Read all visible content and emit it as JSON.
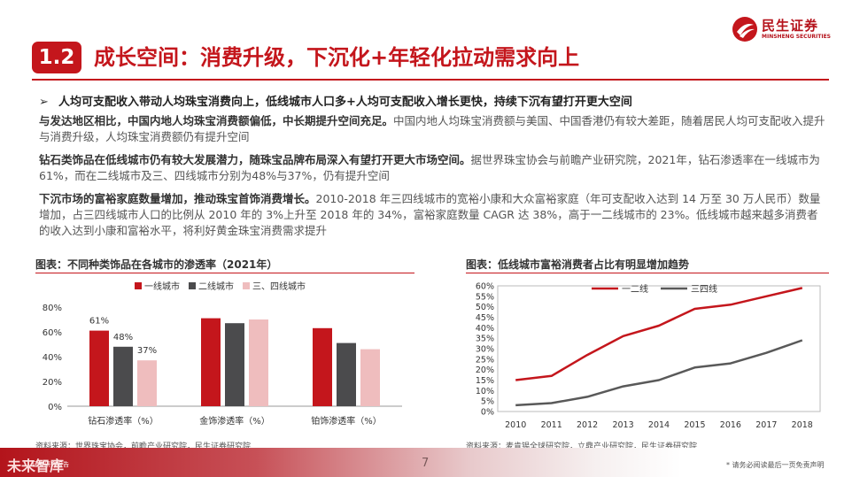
{
  "logo": {
    "cn": "民生证券",
    "en": "MINSHENG SECURITIES"
  },
  "section": {
    "number": "1.2",
    "title": "成长空间：消费升级，下沉化+年轻化拉动需求向上"
  },
  "bullet": "人均可支配收入带动人均珠宝消费向上，低线城市人口多+人均可支配收入增长更快，持续下沉有望打开更大空间",
  "paragraphs": [
    {
      "bold": "与发达地区相比，中国内地人均珠宝消费额偏低，中长期提升空间充足。",
      "text": "中国内地人均珠宝消费额与美国、中国香港仍有较大差距，随着居民人均可支配收入提升与消费升级，人均珠宝消费额仍有提升空间"
    },
    {
      "bold": "钻石类饰品在低线城市仍有较大发展潜力，随珠宝品牌布局深入有望打开更大市场空间。",
      "text": "据世界珠宝协会与前瞻产业研究院，2021年，钻石渗透率在一线城市为61%，而在二线城市及三、四线城市分别为48%与37%，仍有提升空间"
    },
    {
      "bold": "下沉市场的富裕家庭数量增加，推动珠宝首饰消费增长。",
      "text": "2010-2018 年三四线城市的宽裕小康和大众富裕家庭（年可支配收入达到 14 万至 30 万人民币）数量增加，占三四线城市人口的比例从 2010 年的 3%上升至 2018 年的 34%，富裕家庭数量 CAGR 达 38%，高于一二线城市的 23%。低线城市越来越多消费者的收入达到小康和富裕水平，将利好黄金珠宝消费需求提升"
    }
  ],
  "figures": {
    "left_title": "图表：不同种类饰品在各城市的渗透率（2021年）",
    "right_title": "图表：低线城市富裕消费者占比有明显增加趋势",
    "left_source": "资料来源：世界珠宝协会，前瞻产业研究院，民生证券研究院",
    "right_source": "资料来源：麦肯锡全球研究院，立鼎产业研究院，民生证券研究院"
  },
  "chart_data": [
    {
      "type": "bar",
      "title": "不同种类饰品在各城市的渗透率（2021年）",
      "categories": [
        "钻石渗透率（%）",
        "金饰渗透率（%）",
        "铂饰渗透率（%）"
      ],
      "series": [
        {
          "name": "一线城市",
          "color": "#c4161c",
          "values": [
            61,
            71,
            63
          ]
        },
        {
          "name": "二线城市",
          "color": "#4b4b4d",
          "values": [
            48,
            67,
            51
          ]
        },
        {
          "name": "三、四线城市",
          "color": "#efbdbe",
          "values": [
            37,
            70,
            46
          ]
        }
      ],
      "data_labels": [
        "61%",
        "48%",
        "37%"
      ],
      "yticks": [
        "0%",
        "20%",
        "40%",
        "60%",
        "80%"
      ],
      "ylim": [
        0,
        80
      ],
      "legend": "top"
    },
    {
      "type": "line",
      "title": "低线城市富裕消费者占比有明显增加趋势",
      "x": [
        "2010",
        "2011",
        "2012",
        "2013",
        "2014",
        "2015",
        "2016",
        "2017",
        "2018"
      ],
      "series": [
        {
          "name": "一二线",
          "color": "#c4161c",
          "values": [
            15,
            17,
            27,
            36,
            41,
            49,
            51,
            55,
            59
          ]
        },
        {
          "name": "三四线",
          "color": "#595959",
          "values": [
            3,
            4,
            7,
            12,
            15,
            21,
            23,
            28,
            34
          ]
        }
      ],
      "yticks": [
        "0%",
        "5%",
        "10%",
        "15%",
        "20%",
        "25%",
        "30%",
        "35%",
        "40%",
        "45%",
        "50%",
        "55%",
        "60%"
      ],
      "ylim": [
        0,
        60
      ],
      "legend": "top-left"
    }
  ],
  "footer": {
    "left_text": "未来智库",
    "left_small": "证券研究报告",
    "page": "7",
    "disclaimer": "* 请务必阅读最后一页免责声明"
  }
}
